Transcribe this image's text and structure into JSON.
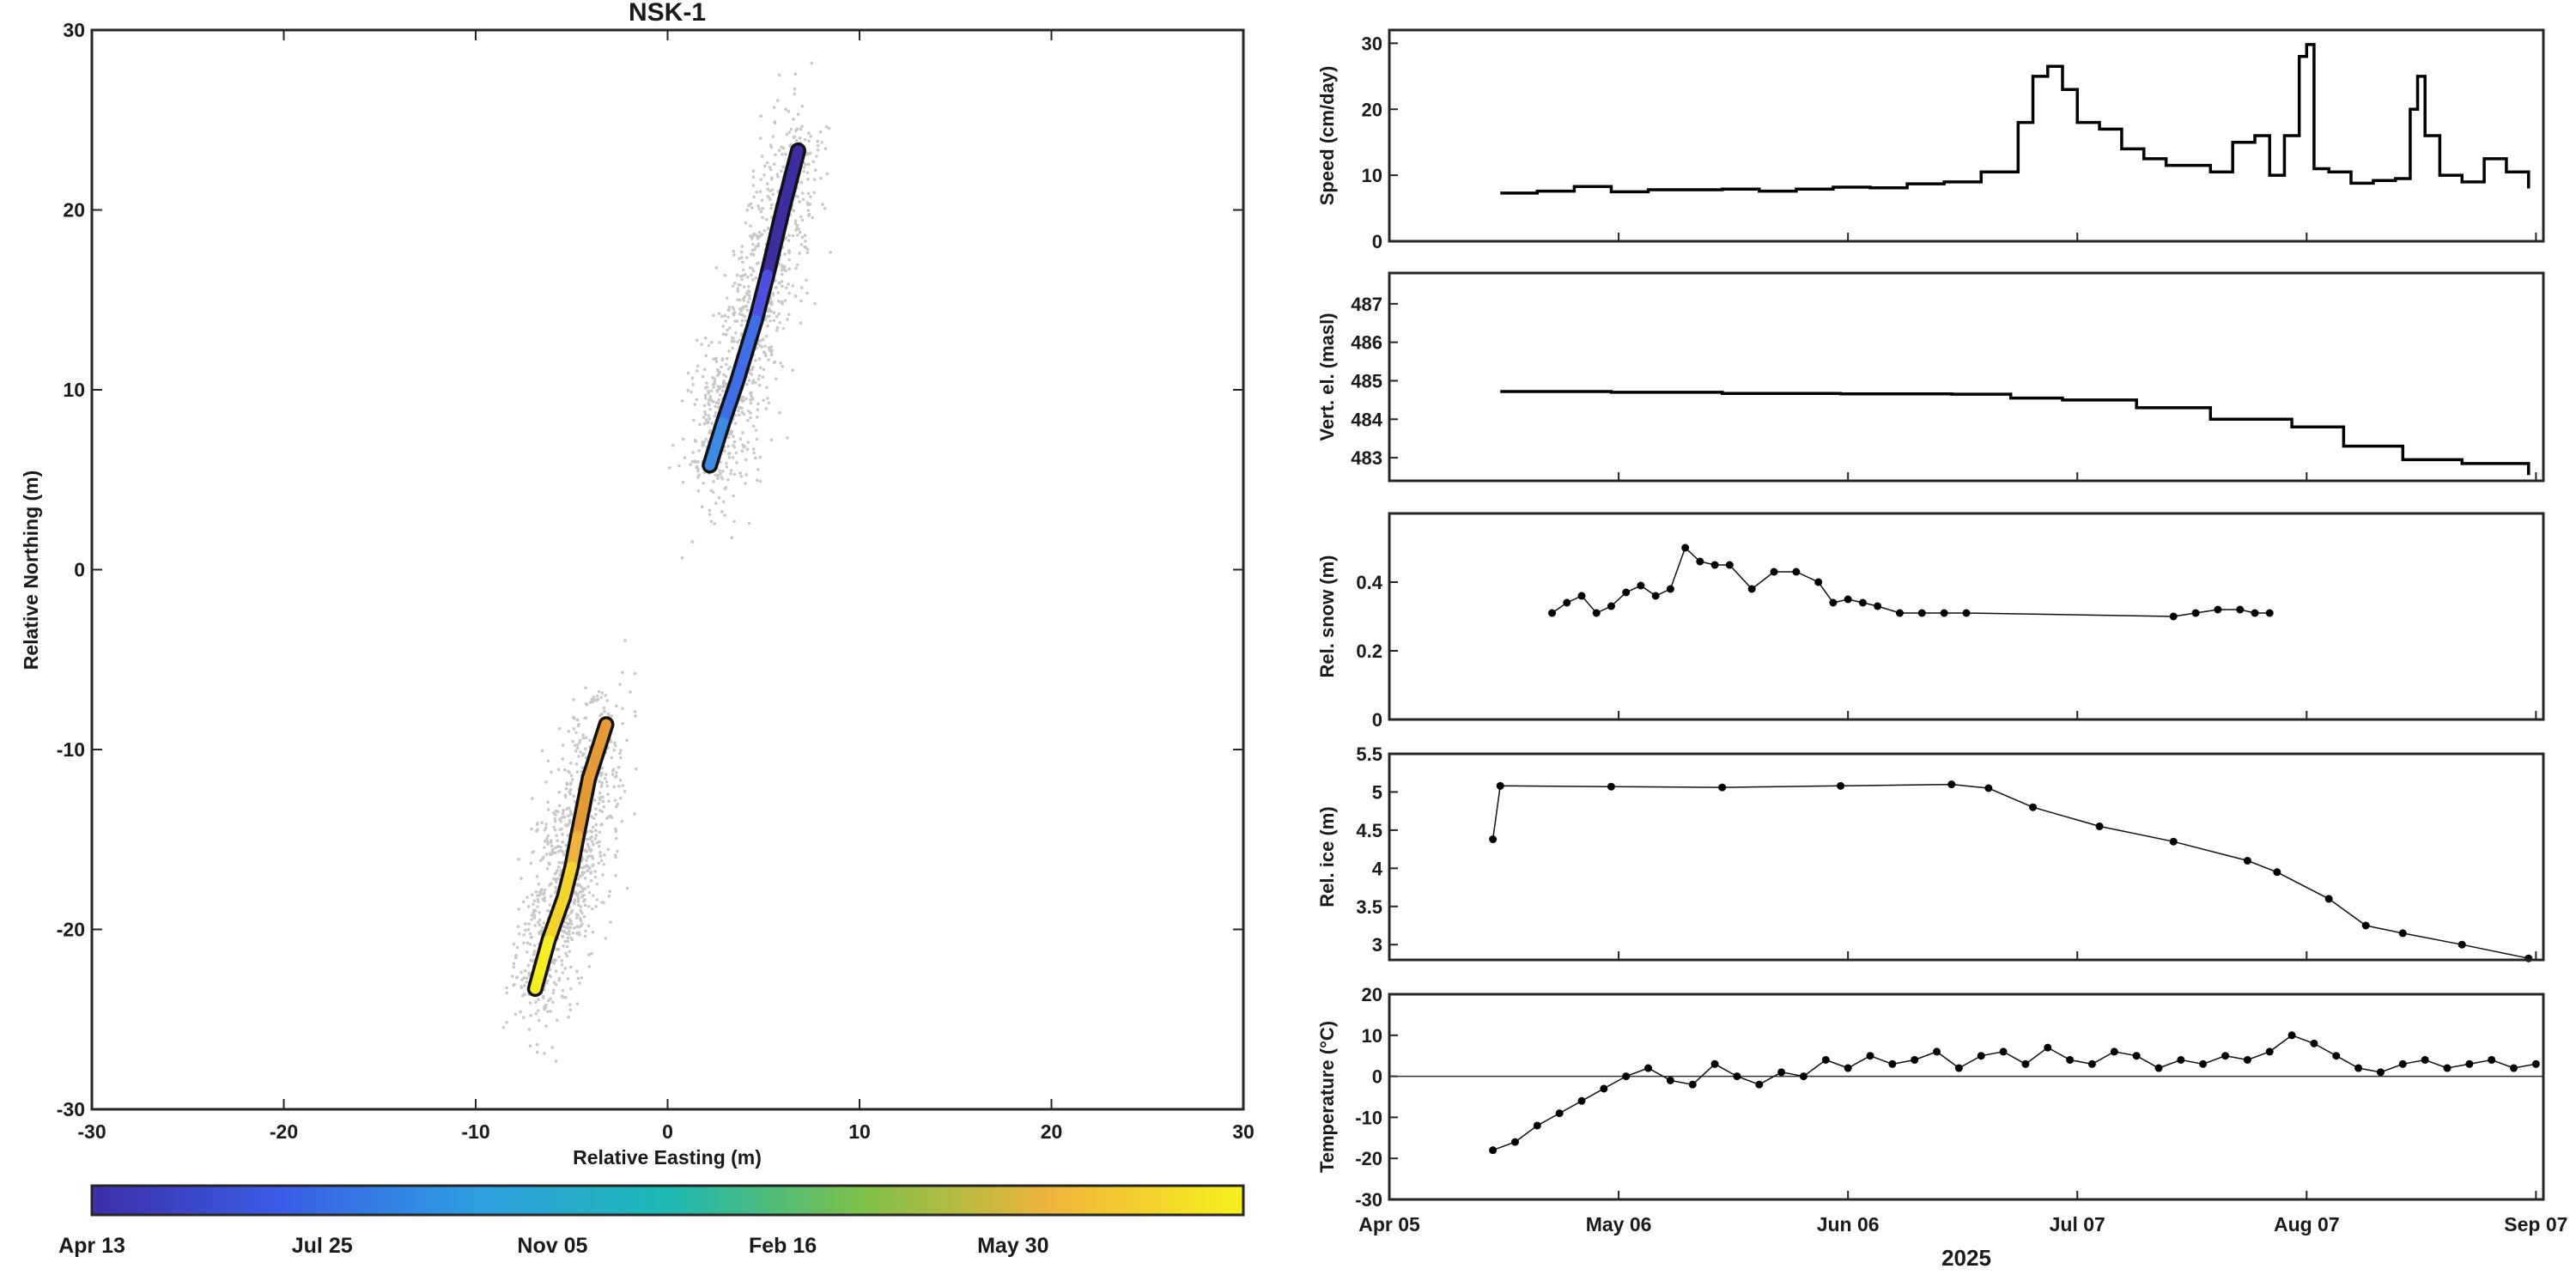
{
  "chart_data": [
    {
      "type": "scatter",
      "title": "NSK-1",
      "xlabel": "Relative Easting (m)",
      "ylabel": "Relative Northing (m)",
      "xlim": [
        -30,
        30
      ],
      "ylim": [
        -30,
        30
      ],
      "xticks": [
        "-30",
        "-20",
        "-10",
        "0",
        "10",
        "20",
        "30"
      ],
      "yticks": [
        "-30",
        "-20",
        "-10",
        "0",
        "10",
        "20",
        "30"
      ],
      "grid": false,
      "series": [
        {
          "x": [
            6.8,
            6.0,
            5.2,
            4.6,
            3.6,
            2.9,
            2.2
          ],
          "y": [
            23.3,
            20.0,
            16.4,
            13.9,
            10.4,
            8.2,
            5.8
          ]
        },
        {
          "x": [
            -3.2,
            -4.1,
            -4.7,
            -5.0,
            -5.4,
            -6.2,
            -6.9
          ],
          "y": [
            -8.6,
            -11.6,
            -14.8,
            -16.5,
            -18.2,
            -20.6,
            -23.3
          ]
        }
      ],
      "colorbar": {
        "colors": [
          "#3d2fa8",
          "#3a5ee8",
          "#2e9ee0",
          "#1bb7b3",
          "#7cc04a",
          "#f0b43a",
          "#f6f01d"
        ],
        "tick_labels": [
          "Apr 13",
          "Jul 25",
          "Nov 05",
          "Feb 16",
          "May 30"
        ]
      }
    },
    {
      "type": "line",
      "ylabel": "Speed (cm/day)",
      "ylim": [
        0,
        32
      ],
      "yticks": [
        "0",
        "10",
        "20",
        "30"
      ],
      "xlim": [
        "2025-04-05",
        "2025-09-08"
      ],
      "x": [
        "2025-04-20",
        "2025-04-25",
        "2025-04-30",
        "2025-05-05",
        "2025-05-10",
        "2025-05-15",
        "2025-05-20",
        "2025-05-25",
        "2025-05-30",
        "2025-06-04",
        "2025-06-09",
        "2025-06-14",
        "2025-06-19",
        "2025-06-24",
        "2025-06-29",
        "2025-07-01",
        "2025-07-03",
        "2025-07-05",
        "2025-07-07",
        "2025-07-10",
        "2025-07-13",
        "2025-07-16",
        "2025-07-19",
        "2025-07-22",
        "2025-07-25",
        "2025-07-28",
        "2025-07-31",
        "2025-08-02",
        "2025-08-04",
        "2025-08-06",
        "2025-08-07",
        "2025-08-08",
        "2025-08-10",
        "2025-08-13",
        "2025-08-16",
        "2025-08-19",
        "2025-08-21",
        "2025-08-22",
        "2025-08-23",
        "2025-08-25",
        "2025-08-28",
        "2025-08-31",
        "2025-09-03",
        "2025-09-06"
      ],
      "y": [
        7.3,
        7.6,
        8.3,
        7.5,
        7.8,
        7.8,
        7.9,
        7.6,
        7.9,
        8.2,
        8.1,
        8.7,
        9.0,
        10.5,
        18,
        25,
        26.5,
        23,
        18,
        17,
        14,
        12.5,
        11.5,
        11.5,
        10.5,
        15,
        16,
        10,
        16,
        28,
        29.8,
        11,
        10.5,
        8.8,
        9.2,
        9.5,
        20,
        25,
        16,
        10,
        9,
        12.5,
        10.5,
        8
      ]
    },
    {
      "type": "line",
      "ylabel": "Vert. el. (masl)",
      "ylim": [
        482.4,
        487.8
      ],
      "yticks": [
        "483",
        "484",
        "485",
        "486",
        "487"
      ],
      "xlim": [
        "2025-04-05",
        "2025-09-08"
      ],
      "x": [
        "2025-04-20",
        "2025-05-05",
        "2025-05-20",
        "2025-06-05",
        "2025-06-20",
        "2025-06-28",
        "2025-07-05",
        "2025-07-15",
        "2025-07-25",
        "2025-08-05",
        "2025-08-12",
        "2025-08-20",
        "2025-08-28",
        "2025-09-06"
      ],
      "y": [
        484.72,
        484.7,
        484.67,
        484.66,
        484.65,
        484.55,
        484.5,
        484.3,
        484.0,
        483.8,
        483.3,
        482.95,
        482.85,
        482.55
      ]
    },
    {
      "type": "scatter",
      "ylabel": "Rel. snow (m)",
      "ylim": [
        0,
        0.6
      ],
      "yticks": [
        "0",
        "0.2",
        "0.4"
      ],
      "xlim": [
        "2025-04-05",
        "2025-09-08"
      ],
      "x": [
        "2025-04-27",
        "2025-04-29",
        "2025-05-01",
        "2025-05-03",
        "2025-05-05",
        "2025-05-07",
        "2025-05-09",
        "2025-05-11",
        "2025-05-13",
        "2025-05-15",
        "2025-05-17",
        "2025-05-19",
        "2025-05-21",
        "2025-05-24",
        "2025-05-27",
        "2025-05-30",
        "2025-06-02",
        "2025-06-04",
        "2025-06-06",
        "2025-06-08",
        "2025-06-10",
        "2025-06-13",
        "2025-06-16",
        "2025-06-19",
        "2025-06-22",
        "2025-07-20",
        "2025-07-23",
        "2025-07-26",
        "2025-07-29",
        "2025-07-31",
        "2025-08-02"
      ],
      "y": [
        0.31,
        0.34,
        0.36,
        0.31,
        0.33,
        0.37,
        0.39,
        0.36,
        0.38,
        0.5,
        0.46,
        0.45,
        0.45,
        0.38,
        0.43,
        0.43,
        0.4,
        0.34,
        0.35,
        0.34,
        0.33,
        0.31,
        0.31,
        0.31,
        0.31,
        0.3,
        0.31,
        0.32,
        0.32,
        0.31,
        0.31
      ]
    },
    {
      "type": "scatter",
      "ylabel": "Rel. ice  (m)",
      "ylim": [
        2.8,
        5.5
      ],
      "yticks": [
        "3",
        "3.5",
        "4",
        "4.5",
        "5",
        "5.5"
      ],
      "xlim": [
        "2025-04-05",
        "2025-09-08"
      ],
      "x": [
        "2025-04-19",
        "2025-04-20",
        "2025-05-05",
        "2025-05-20",
        "2025-06-05",
        "2025-06-20",
        "2025-06-25",
        "2025-07-01",
        "2025-07-10",
        "2025-07-20",
        "2025-07-30",
        "2025-08-03",
        "2025-08-10",
        "2025-08-15",
        "2025-08-20",
        "2025-08-28",
        "2025-09-06"
      ],
      "y": [
        4.38,
        5.08,
        5.07,
        5.06,
        5.08,
        5.1,
        5.05,
        4.8,
        4.55,
        4.35,
        4.1,
        3.95,
        3.6,
        3.25,
        3.15,
        3.0,
        2.82
      ]
    },
    {
      "type": "line",
      "ylabel": "Temperature (°C)",
      "ylim": [
        -30,
        20
      ],
      "yticks": [
        "-30",
        "-20",
        "-10",
        "0",
        "10",
        "20"
      ],
      "xlim": [
        "2025-04-05",
        "2025-09-08"
      ],
      "xtick_labels": [
        "Apr 05",
        "May 06",
        "Jun 06",
        "Jul 07",
        "Aug 07",
        "Sep 07"
      ],
      "xlabel": "2025",
      "x": [
        "2025-04-19",
        "2025-04-22",
        "2025-04-25",
        "2025-04-28",
        "2025-05-01",
        "2025-05-04",
        "2025-05-07",
        "2025-05-10",
        "2025-05-13",
        "2025-05-16",
        "2025-05-19",
        "2025-05-22",
        "2025-05-25",
        "2025-05-28",
        "2025-05-31",
        "2025-06-03",
        "2025-06-06",
        "2025-06-09",
        "2025-06-12",
        "2025-06-15",
        "2025-06-18",
        "2025-06-21",
        "2025-06-24",
        "2025-06-27",
        "2025-06-30",
        "2025-07-03",
        "2025-07-06",
        "2025-07-09",
        "2025-07-12",
        "2025-07-15",
        "2025-07-18",
        "2025-07-21",
        "2025-07-24",
        "2025-07-27",
        "2025-07-30",
        "2025-08-02",
        "2025-08-05",
        "2025-08-08",
        "2025-08-11",
        "2025-08-14",
        "2025-08-17",
        "2025-08-20",
        "2025-08-23",
        "2025-08-26",
        "2025-08-29",
        "2025-09-01",
        "2025-09-04",
        "2025-09-07"
      ],
      "y": [
        -18,
        -16,
        -12,
        -9,
        -6,
        -3,
        0,
        2,
        -1,
        -2,
        3,
        0,
        -2,
        1,
        0,
        4,
        2,
        5,
        3,
        4,
        6,
        2,
        5,
        6,
        3,
        7,
        4,
        3,
        6,
        5,
        2,
        4,
        3,
        5,
        4,
        6,
        10,
        8,
        5,
        2,
        1,
        3,
        4,
        2,
        3,
        4,
        2,
        3
      ]
    }
  ]
}
